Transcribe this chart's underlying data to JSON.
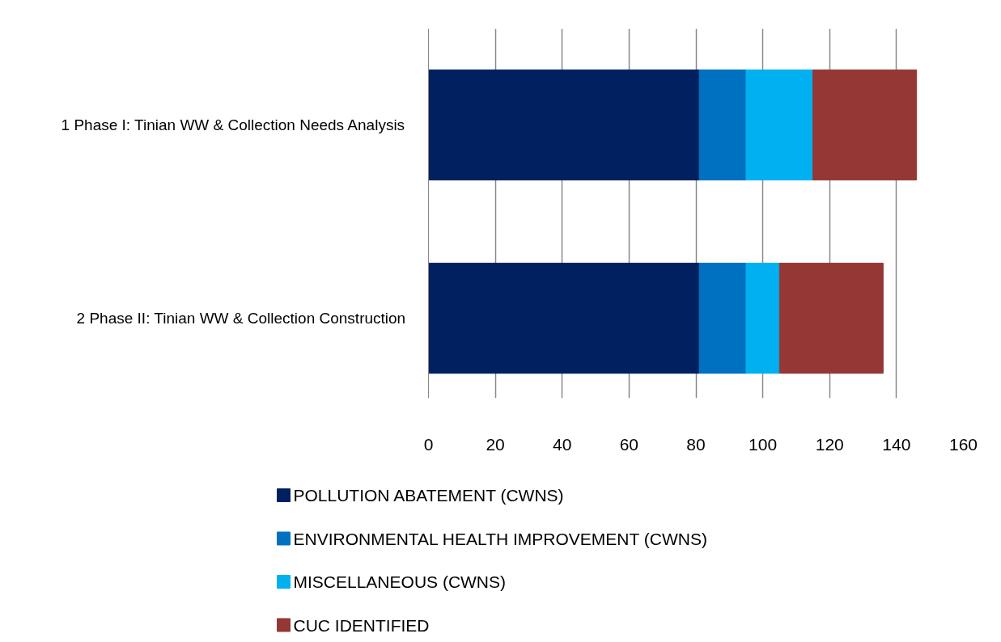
{
  "chart_data": {
    "type": "bar",
    "orientation": "horizontal",
    "stacked": true,
    "categories": [
      "1 Phase I: Tinian WW & Collection Needs Analysis",
      "2 Phase II: Tinian WW & Collection Construction"
    ],
    "series": [
      {
        "name": "POLLUTION ABATEMENT (CWNS)",
        "color": "#002060",
        "values": [
          81,
          81
        ]
      },
      {
        "name": "ENVIRONMENTAL HEALTH IMPROVEMENT (CWNS)",
        "color": "#0070c0",
        "values": [
          14,
          14
        ]
      },
      {
        "name": "MISCELLANEOUS (CWNS)",
        "color": "#00b0f0",
        "values": [
          20,
          10
        ]
      },
      {
        "name": "CUC IDENTIFIED",
        "color": "#953735",
        "values": [
          31,
          31
        ]
      }
    ],
    "xlim": [
      0,
      160
    ],
    "xticks": [
      0,
      20,
      40,
      60,
      80,
      100,
      120,
      140,
      160
    ],
    "grid": "x",
    "legend": "bottom"
  }
}
